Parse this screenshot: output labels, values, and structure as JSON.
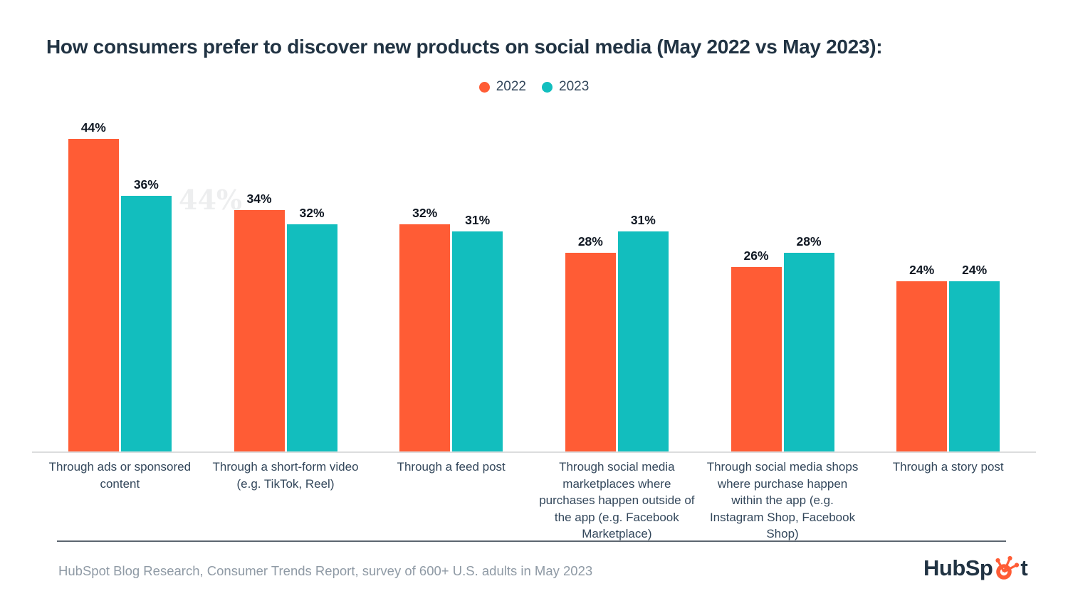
{
  "title": "How consumers prefer to discover new products on social media (May 2022 vs May 2023):",
  "watermark": "44%",
  "legend": {
    "items": [
      {
        "label": "2022",
        "color": "#FF5C35"
      },
      {
        "label": "2023",
        "color": "#12BEBE"
      }
    ]
  },
  "chart_data": {
    "type": "bar",
    "title": "How consumers prefer to discover new products on social media (May 2022 vs May 2023):",
    "categories": [
      "Through ads or sponsored content",
      "Through a short-form video (e.g. TikTok, Reel)",
      "Through a feed post",
      "Through social media marketplaces where purchases happen outside of the app (e.g. Facebook Marketplace)",
      "Through social media shops where purchase happen within the app (e.g. Instagram Shop, Facebook Shop)",
      "Through a story post"
    ],
    "series": [
      {
        "name": "2022",
        "color": "#FF5C35",
        "values": [
          44,
          34,
          32,
          28,
          26,
          24
        ]
      },
      {
        "name": "2023",
        "color": "#12BEBE",
        "values": [
          36,
          32,
          31,
          31,
          28,
          24
        ]
      }
    ],
    "value_suffix": "%",
    "ylim": [
      0,
      44
    ],
    "grid": false,
    "data_labels": true,
    "legend_position": "top-center"
  },
  "footer": {
    "source": "HubSpot Blog Research, Consumer Trends Report, survey of 600+ U.S. adults in May 2023",
    "logo": {
      "pre": "HubSp",
      "post": "t"
    }
  },
  "colors": {
    "background": "#FFFFFF",
    "title": "#213343",
    "category_label": "#33475B",
    "value_label": "#0F1722",
    "axis_line": "#DCDDDE",
    "divider": "#5C6670",
    "source_text": "#8F9AA5",
    "accent_orange": "#FF5C35",
    "accent_teal": "#12BEBE"
  }
}
